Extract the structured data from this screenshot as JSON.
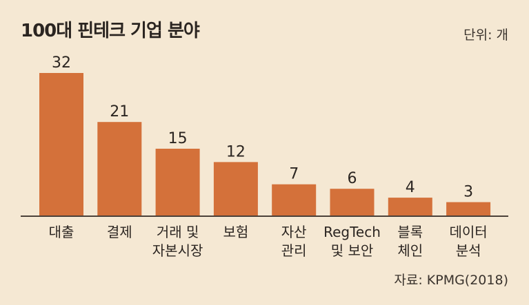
{
  "title": "100대 핀테크 기업 분야",
  "unit": "단위: 개",
  "source": "자료: KPMG(2018)",
  "colors": {
    "bar": "#d4713a",
    "background": "#f5e8d3",
    "baseline": "#4a4038"
  },
  "chart_data": {
    "type": "bar",
    "title": "100대 핀테크 기업 분야",
    "categories": [
      [
        "대출"
      ],
      [
        "결제"
      ],
      [
        "거래 및",
        "자본시장"
      ],
      [
        "보험"
      ],
      [
        "자산",
        "관리"
      ],
      [
        "RegTech",
        "및 보안"
      ],
      [
        "블록",
        "체인"
      ],
      [
        "데이터",
        "분석"
      ]
    ],
    "values": [
      32,
      21,
      15,
      12,
      7,
      6,
      4,
      3
    ],
    "ylim": [
      0,
      32
    ],
    "grid": false,
    "legend": "none"
  }
}
